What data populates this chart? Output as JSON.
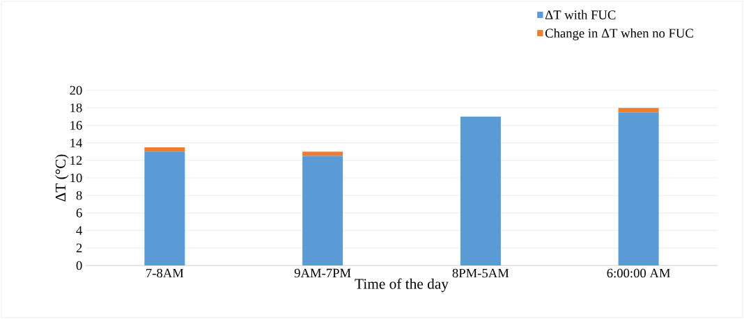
{
  "chart_data": {
    "type": "bar",
    "stacked": true,
    "xlabel": "Time of the day",
    "ylabel": "ΔT (°C)",
    "categories": [
      "7-8AM",
      "9AM-7PM",
      "8PM-5AM",
      "6:00:00 AM"
    ],
    "series": [
      {
        "name": "ΔT with FUC",
        "color": "#5b9bd5",
        "values": [
          13,
          12.5,
          17,
          17.5
        ]
      },
      {
        "name": "Change in ΔT when no FUC",
        "color": "#ed7d31",
        "values": [
          0.5,
          0.5,
          0,
          0.5
        ]
      }
    ],
    "ylim": [
      0,
      20
    ],
    "yticks": [
      0,
      2,
      4,
      6,
      8,
      10,
      12,
      14,
      16,
      18,
      20
    ],
    "grid": "y",
    "legend": "top right"
  }
}
